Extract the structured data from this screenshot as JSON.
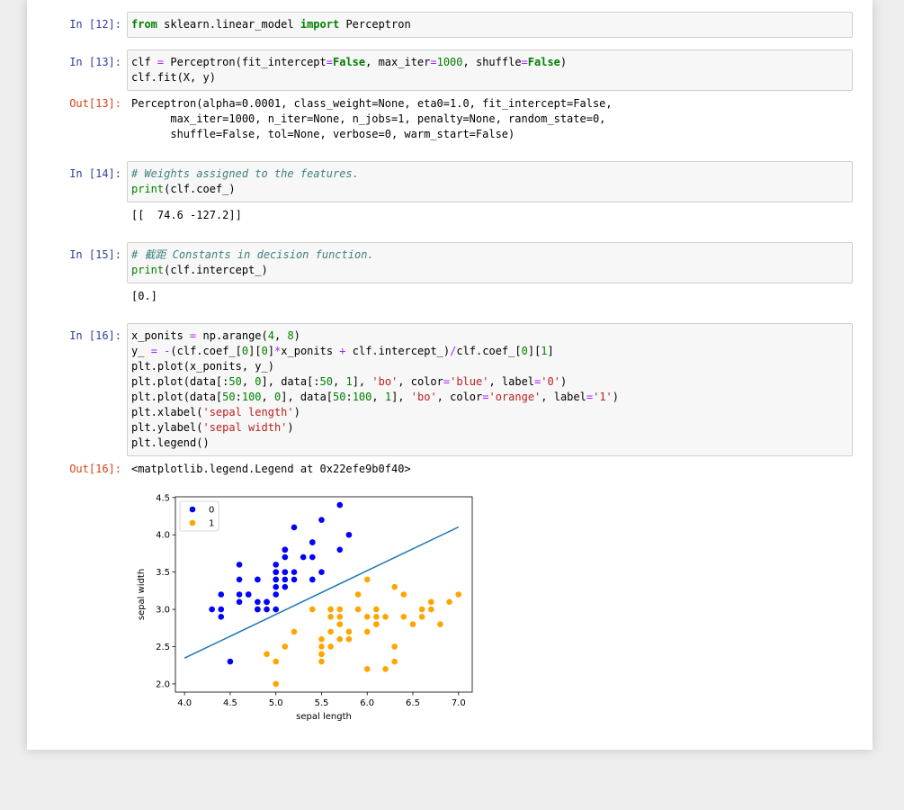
{
  "cells": [
    {
      "input": {
        "prompt": "In [12]:",
        "lines": [
          "from sklearn.linear_model import Perceptron"
        ]
      }
    },
    {
      "input": {
        "prompt": "In [13]:",
        "lines": [
          "clf = Perceptron(fit_intercept=False, max_iter=1000, shuffle=False)",
          "clf.fit(X, y)"
        ]
      },
      "output": {
        "prompt": "Out[13]:",
        "lines": [
          "Perceptron(alpha=0.0001, class_weight=None, eta0=1.0, fit_intercept=False,",
          "      max_iter=1000, n_iter=None, n_jobs=1, penalty=None, random_state=0,",
          "      shuffle=False, tol=None, verbose=0, warm_start=False)"
        ]
      }
    },
    {
      "input": {
        "prompt": "In [14]:",
        "lines": [
          "# Weights assigned to the features.",
          "print(clf.coef_)"
        ]
      },
      "output": {
        "lines": [
          "[[  74.6 -127.2]]"
        ]
      }
    },
    {
      "input": {
        "prompt": "In [15]:",
        "lines": [
          "# 截距 Constants in decision function.",
          "print(clf.intercept_)"
        ]
      },
      "output": {
        "lines": [
          "[0.]"
        ]
      }
    },
    {
      "input": {
        "prompt": "In [16]:",
        "lines": [
          "x_ponits = np.arange(4, 8)",
          "y_ = -(clf.coef_[0][0]*x_ponits + clf.intercept_)/clf.coef_[0][1]",
          "plt.plot(x_ponits, y_)",
          "plt.plot(data[:50, 0], data[:50, 1], 'bo', color='blue', label='0')",
          "plt.plot(data[50:100, 0], data[50:100, 1], 'bo', color='orange', label='1')",
          "plt.xlabel('sepal length')",
          "plt.ylabel('sepal width')",
          "plt.legend()"
        ]
      },
      "output": {
        "prompt": "Out[16]:",
        "lines": [
          "<matplotlib.legend.Legend at 0x22efe9b0f40>"
        ]
      }
    }
  ],
  "chart_data": {
    "type": "scatter",
    "xlabel": "sepal length",
    "ylabel": "sepal width",
    "xlim": [
      3.9,
      7.15
    ],
    "ylim": [
      1.89,
      4.51
    ],
    "xticks": [
      {
        "value": 4,
        "label": "4.0"
      },
      {
        "value": 4.5,
        "label": "4.5"
      },
      {
        "value": 5,
        "label": "5.0"
      },
      {
        "value": 5.5,
        "label": "5.5"
      },
      {
        "value": 6,
        "label": "6.0"
      },
      {
        "value": 6.5,
        "label": "6.5"
      },
      {
        "value": 7,
        "label": "7.0"
      }
    ],
    "yticks": [
      {
        "value": 2,
        "label": "2.0"
      },
      {
        "value": 2.5,
        "label": "2.5"
      },
      {
        "value": 3,
        "label": "3.0"
      },
      {
        "value": 3.5,
        "label": "3.5"
      },
      {
        "value": 4,
        "label": "4.0"
      },
      {
        "value": 4.5,
        "label": "4.5"
      }
    ],
    "legend": "upper left",
    "line": {
      "color": "#1f77b4",
      "x": [
        4,
        5,
        6,
        7
      ],
      "values": [
        2.346,
        2.932,
        3.519,
        4.105
      ]
    },
    "series": [
      {
        "name": "0",
        "color": "blue",
        "x": [
          5.1,
          4.9,
          4.7,
          4.6,
          5.0,
          5.4,
          4.6,
          5.0,
          4.4,
          4.9,
          5.4,
          4.8,
          4.8,
          4.3,
          5.8,
          5.7,
          5.4,
          5.1,
          5.7,
          5.1,
          5.4,
          5.1,
          4.6,
          5.1,
          4.8,
          5.0,
          5.0,
          5.2,
          5.2,
          4.7,
          4.8,
          5.4,
          5.2,
          5.5,
          4.9,
          5.0,
          5.5,
          4.9,
          4.4,
          5.1,
          5.0,
          4.5,
          4.4,
          5.0,
          5.1,
          4.8,
          5.1,
          4.6,
          5.3,
          5.0
        ],
        "values": [
          3.5,
          3.0,
          3.2,
          3.1,
          3.6,
          3.9,
          3.4,
          3.4,
          2.9,
          3.1,
          3.7,
          3.4,
          3.0,
          3.0,
          4.0,
          4.4,
          3.9,
          3.5,
          3.8,
          3.8,
          3.4,
          3.7,
          3.6,
          3.3,
          3.4,
          3.0,
          3.4,
          3.5,
          3.4,
          3.2,
          3.1,
          3.4,
          4.1,
          4.2,
          3.1,
          3.2,
          3.5,
          3.1,
          3.0,
          3.4,
          3.5,
          2.3,
          3.2,
          3.5,
          3.8,
          3.0,
          3.8,
          3.2,
          3.7,
          3.3
        ]
      },
      {
        "name": "1",
        "color": "orange",
        "x": [
          7.0,
          6.4,
          6.9,
          5.5,
          6.5,
          5.7,
          6.3,
          4.9,
          6.6,
          5.2,
          5.0,
          5.9,
          6.0,
          6.1,
          5.6,
          6.7,
          5.6,
          5.8,
          6.2,
          5.6,
          5.9,
          6.1,
          6.3,
          6.1,
          6.4,
          6.6,
          6.8,
          6.7,
          6.0,
          5.7,
          5.5,
          5.5,
          5.8,
          6.0,
          5.4,
          6.0,
          6.7,
          6.3,
          5.6,
          5.5,
          5.5,
          6.1,
          5.8,
          5.0,
          5.6,
          5.7,
          5.7,
          6.2,
          5.1,
          5.7
        ],
        "values": [
          3.2,
          3.2,
          3.1,
          2.3,
          2.8,
          2.8,
          3.3,
          2.4,
          2.9,
          2.7,
          2.0,
          3.0,
          2.2,
          2.9,
          2.9,
          3.1,
          3.0,
          2.7,
          2.2,
          2.5,
          3.2,
          2.8,
          2.5,
          2.8,
          2.9,
          3.0,
          2.8,
          3.0,
          2.9,
          2.6,
          2.4,
          2.4,
          2.7,
          2.7,
          3.0,
          3.4,
          3.1,
          2.3,
          3.0,
          2.5,
          2.6,
          3.0,
          2.6,
          2.3,
          2.7,
          3.0,
          2.9,
          2.9,
          2.5,
          2.8
        ]
      }
    ]
  }
}
